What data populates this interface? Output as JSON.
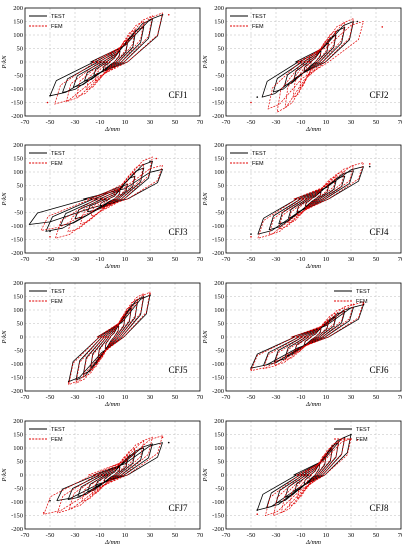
{
  "chart_data": [
    {
      "type": "line",
      "panel": "CFJ1",
      "xlim": [
        -70,
        70
      ],
      "ylim": [
        -200,
        200
      ],
      "xticks": [
        -70,
        -50,
        -30,
        -10,
        10,
        30,
        50,
        70
      ],
      "yticks": [
        -200,
        -150,
        -100,
        -50,
        0,
        50,
        100,
        150,
        200
      ],
      "xlabel": "Δ/mm",
      "ylabel": "P/kN",
      "legend": "top-left",
      "grid": true,
      "series": [
        {
          "name": "TEST",
          "color": "#000000",
          "dash": "solid",
          "peak_pos": [
            40,
            175
          ],
          "peak_neg": [
            -50,
            -125
          ],
          "loops": [
            [
              6,
              40
            ],
            [
              12,
              70
            ],
            [
              18,
              100
            ],
            [
              25,
              130
            ],
            [
              32,
              158
            ],
            [
              40,
              175
            ]
          ]
        },
        {
          "name": "FEM",
          "color": "#e00000",
          "dash": "dashed",
          "peak_pos": [
            45,
            175
          ],
          "peak_neg": [
            -52,
            -150
          ],
          "loops": [
            [
              6,
              45
            ],
            [
              12,
              80
            ],
            [
              18,
              115
            ],
            [
              25,
              145
            ],
            [
              32,
              165
            ],
            [
              40,
              175
            ]
          ]
        }
      ]
    },
    {
      "type": "line",
      "panel": "CFJ2",
      "xlim": [
        -70,
        70
      ],
      "ylim": [
        -200,
        200
      ],
      "xticks": [
        -70,
        -50,
        -30,
        -10,
        10,
        30,
        50,
        70
      ],
      "yticks": [
        -200,
        -150,
        -100,
        -50,
        0,
        50,
        100,
        150,
        200
      ],
      "xlabel": "Δ/mm",
      "ylabel": "P/kN",
      "legend": "top-left",
      "grid": true,
      "series": [
        {
          "name": "TEST",
          "color": "#000000",
          "dash": "solid",
          "peak_pos": [
            35,
            150
          ],
          "peak_neg": [
            -45,
            -130
          ],
          "loops": [
            [
              6,
              40
            ],
            [
              12,
              70
            ],
            [
              18,
              100
            ],
            [
              25,
              128
            ],
            [
              32,
              150
            ]
          ]
        },
        {
          "name": "FEM",
          "color": "#e00000",
          "dash": "dashed",
          "peak_pos": [
            55,
            130
          ],
          "peak_neg": [
            -50,
            -150
          ],
          "loops": [
            [
              6,
              45
            ],
            [
              12,
              80
            ],
            [
              18,
              110
            ],
            [
              25,
              140
            ],
            [
              32,
              155
            ],
            [
              40,
              145
            ]
          ]
        }
      ]
    },
    {
      "type": "line",
      "panel": "CFJ3",
      "xlim": [
        -70,
        70
      ],
      "ylim": [
        -200,
        200
      ],
      "xticks": [
        -70,
        -50,
        -30,
        -10,
        10,
        30,
        50,
        70
      ],
      "yticks": [
        -200,
        -150,
        -100,
        -50,
        0,
        50,
        100,
        150,
        200
      ],
      "xlabel": "Δ/mm",
      "ylabel": "P/kN",
      "legend": "top-left",
      "grid": true,
      "series": [
        {
          "name": "TEST",
          "color": "#000000",
          "dash": "solid",
          "peak_pos": [
            30,
            140
          ],
          "peak_neg": [
            -50,
            -120
          ],
          "loops": [
            [
              6,
              30
            ],
            [
              12,
              55
            ],
            [
              18,
              85
            ],
            [
              25,
              115
            ],
            [
              32,
              140
            ],
            [
              40,
              110
            ]
          ]
        },
        {
          "name": "FEM",
          "color": "#e00000",
          "dash": "dashed",
          "peak_pos": [
            35,
            150
          ],
          "peak_neg": [
            -50,
            -140
          ],
          "loops": [
            [
              6,
              35
            ],
            [
              12,
              65
            ],
            [
              18,
              95
            ],
            [
              25,
              125
            ],
            [
              32,
              150
            ],
            [
              40,
              120
            ]
          ]
        }
      ]
    },
    {
      "type": "line",
      "panel": "CFJ4",
      "xlim": [
        -70,
        70
      ],
      "ylim": [
        -200,
        200
      ],
      "xticks": [
        -70,
        -50,
        -30,
        -10,
        10,
        30,
        50,
        70
      ],
      "yticks": [
        -200,
        -150,
        -100,
        -50,
        0,
        50,
        100,
        150,
        200
      ],
      "xlabel": "Δ/mm",
      "ylabel": "P/kN",
      "legend": "top-left",
      "grid": true,
      "series": [
        {
          "name": "TEST",
          "color": "#000000",
          "dash": "solid",
          "peak_pos": [
            45,
            120
          ],
          "peak_neg": [
            -50,
            -130
          ],
          "loops": [
            [
              6,
              25
            ],
            [
              12,
              45
            ],
            [
              18,
              65
            ],
            [
              25,
              85
            ],
            [
              32,
              105
            ],
            [
              40,
              120
            ]
          ]
        },
        {
          "name": "FEM",
          "color": "#e00000",
          "dash": "dashed",
          "peak_pos": [
            45,
            130
          ],
          "peak_neg": [
            -50,
            -140
          ],
          "loops": [
            [
              6,
              30
            ],
            [
              12,
              55
            ],
            [
              18,
              80
            ],
            [
              25,
              100
            ],
            [
              32,
              118
            ],
            [
              40,
              130
            ]
          ]
        }
      ]
    },
    {
      "type": "line",
      "panel": "CFJ5",
      "xlim": [
        -70,
        70
      ],
      "ylim": [
        -200,
        200
      ],
      "xticks": [
        -70,
        -50,
        -30,
        -10,
        10,
        30,
        50,
        70
      ],
      "yticks": [
        -200,
        -150,
        -100,
        -50,
        0,
        50,
        100,
        150,
        200
      ],
      "xlabel": "Δ/mm",
      "ylabel": "P/kN",
      "legend": "top-left",
      "grid": true,
      "series": [
        {
          "name": "TEST",
          "color": "#000000",
          "dash": "solid",
          "peak_pos": [
            30,
            155
          ],
          "peak_neg": [
            -35,
            -165
          ],
          "loops": [
            [
              5,
              40
            ],
            [
              10,
              75
            ],
            [
              15,
              105
            ],
            [
              20,
              130
            ],
            [
              25,
              150
            ],
            [
              30,
              155
            ]
          ]
        },
        {
          "name": "FEM",
          "color": "#e00000",
          "dash": "dashed",
          "peak_pos": [
            30,
            160
          ],
          "peak_neg": [
            -35,
            -170
          ],
          "loops": [
            [
              5,
              45
            ],
            [
              10,
              80
            ],
            [
              15,
              110
            ],
            [
              20,
              135
            ],
            [
              25,
              155
            ],
            [
              30,
              160
            ]
          ]
        }
      ]
    },
    {
      "type": "line",
      "panel": "CFJ6",
      "xlim": [
        -70,
        70
      ],
      "ylim": [
        -200,
        200
      ],
      "xticks": [
        -70,
        -50,
        -30,
        -10,
        10,
        30,
        50,
        70
      ],
      "yticks": [
        -200,
        -150,
        -100,
        -50,
        0,
        50,
        100,
        150,
        200
      ],
      "xlabel": "Δ/mm",
      "ylabel": "P/kN",
      "legend": "top-right",
      "grid": true,
      "series": [
        {
          "name": "TEST",
          "color": "#000000",
          "dash": "solid",
          "peak_pos": [
            40,
            120
          ],
          "peak_neg": [
            -50,
            -115
          ],
          "loops": [
            [
              6,
              30
            ],
            [
              12,
              55
            ],
            [
              18,
              75
            ],
            [
              25,
              95
            ],
            [
              32,
              110
            ],
            [
              40,
              120
            ]
          ]
        },
        {
          "name": "FEM",
          "color": "#e00000",
          "dash": "dashed",
          "peak_pos": [
            40,
            125
          ],
          "peak_neg": [
            -50,
            -120
          ],
          "loops": [
            [
              6,
              35
            ],
            [
              12,
              60
            ],
            [
              18,
              85
            ],
            [
              25,
              105
            ],
            [
              32,
              118
            ],
            [
              40,
              125
            ]
          ]
        }
      ]
    },
    {
      "type": "line",
      "panel": "CFJ7",
      "xlim": [
        -70,
        70
      ],
      "ylim": [
        -200,
        200
      ],
      "xticks": [
        -70,
        -50,
        -30,
        -10,
        10,
        30,
        50,
        70
      ],
      "yticks": [
        -200,
        -150,
        -100,
        -50,
        0,
        50,
        100,
        150,
        200
      ],
      "xlabel": "Δ/mm",
      "ylabel": "P/kN",
      "legend": "top-left",
      "grid": true,
      "series": [
        {
          "name": "TEST",
          "color": "#000000",
          "dash": "solid",
          "peak_pos": [
            45,
            120
          ],
          "peak_neg": [
            -50,
            -95
          ],
          "loops": [
            [
              6,
              30
            ],
            [
              12,
              55
            ],
            [
              18,
              80
            ],
            [
              25,
              100
            ],
            [
              32,
              115
            ],
            [
              40,
              120
            ]
          ]
        },
        {
          "name": "FEM",
          "color": "#e00000",
          "dash": "dashed",
          "peak_pos": [
            40,
            140
          ],
          "peak_neg": [
            -55,
            -140
          ],
          "loops": [
            [
              6,
              40
            ],
            [
              12,
              70
            ],
            [
              18,
              95
            ],
            [
              25,
              120
            ],
            [
              32,
              135
            ],
            [
              40,
              140
            ]
          ]
        }
      ]
    },
    {
      "type": "line",
      "panel": "CFJ8",
      "xlim": [
        -70,
        70
      ],
      "ylim": [
        -200,
        200
      ],
      "xticks": [
        -70,
        -50,
        -30,
        -10,
        10,
        30,
        50,
        70
      ],
      "yticks": [
        -200,
        -150,
        -100,
        -50,
        0,
        50,
        100,
        150,
        200
      ],
      "xlabel": "Δ/mm",
      "ylabel": "P/kN",
      "legend": "top-right",
      "grid": true,
      "series": [
        {
          "name": "TEST",
          "color": "#000000",
          "dash": "solid",
          "peak_pos": [
            30,
            150
          ],
          "peak_neg": [
            -45,
            -130
          ],
          "loops": [
            [
              5,
              40
            ],
            [
              10,
              70
            ],
            [
              15,
              95
            ],
            [
              20,
              120
            ],
            [
              25,
              140
            ],
            [
              30,
              150
            ]
          ]
        },
        {
          "name": "FEM",
          "color": "#e00000",
          "dash": "dashed",
          "peak_pos": [
            35,
            130
          ],
          "peak_neg": [
            -45,
            -145
          ],
          "loops": [
            [
              5,
              45
            ],
            [
              10,
              75
            ],
            [
              15,
              100
            ],
            [
              20,
              120
            ],
            [
              25,
              130
            ],
            [
              30,
              130
            ]
          ]
        }
      ]
    }
  ]
}
